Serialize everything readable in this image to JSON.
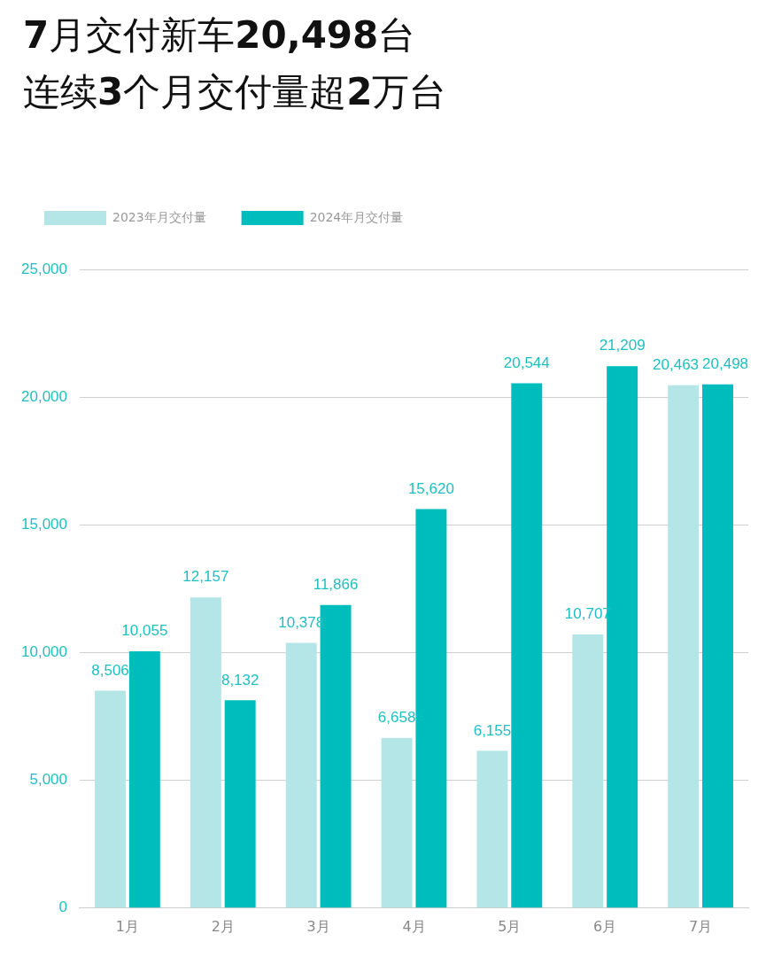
{
  "chart_data": {
    "type": "bar",
    "title": "7月交付新车20,498台",
    "subtitle": "连续3个月交付量超2万台",
    "categories": [
      "1月",
      "2月",
      "3月",
      "4月",
      "5月",
      "6月",
      "7月"
    ],
    "series": [
      {
        "name": "2023年月交付量",
        "color": "#b5e6e7",
        "values": [
          8506,
          12157,
          10378,
          6658,
          6155,
          10707,
          20463
        ],
        "value_labels": [
          "8,506",
          "12,157",
          "10,378",
          "6,658",
          "6,155",
          "10,707",
          "20,463"
        ]
      },
      {
        "name": "2024年月交付量",
        "color": "#00bdbd",
        "values": [
          10055,
          8132,
          11866,
          15620,
          20544,
          21209,
          20498
        ],
        "value_labels": [
          "10,055",
          "8,132",
          "11,866",
          "15,620",
          "20,544",
          "21,209",
          "20,498"
        ]
      }
    ],
    "ylim": [
      0,
      25000
    ],
    "yticks": [
      0,
      {
        "value": 5000,
        "label": "5,000"
      },
      {
        "value": 10000,
        "label": "10,000"
      },
      {
        "value": 15000,
        "label": "15,000"
      },
      {
        "value": 20000,
        "label": "20,000"
      },
      {
        "value": 25000,
        "label": "25,000"
      }
    ],
    "grid": "y",
    "legend": "top left"
  }
}
